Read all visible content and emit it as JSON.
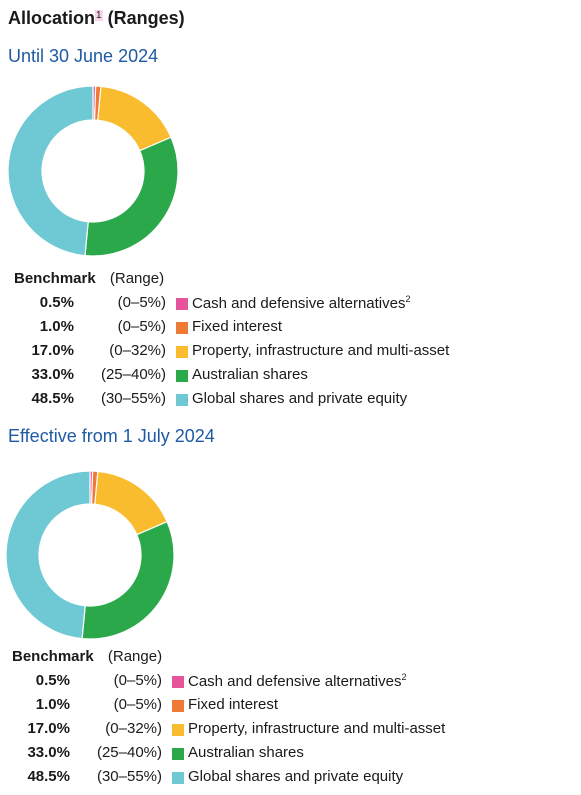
{
  "title": "Allocation",
  "title_footnote": "1",
  "title_suffix": "(Ranges)",
  "legend_headers": {
    "benchmark": "Benchmark",
    "range": "(Range)"
  },
  "chart_data": [
    {
      "type": "pie",
      "title": "Until 30 June 2024",
      "series": [
        {
          "name": "Cash and defensive alternatives",
          "footnote": "2",
          "value": 0.5,
          "range": "(0–5%)",
          "color": "#e4559a"
        },
        {
          "name": "Fixed interest",
          "value": 1.0,
          "range": "(0–5%)",
          "color": "#ee7a35"
        },
        {
          "name": "Property, infrastructure and multi-asset",
          "value": 17.0,
          "range": "(0–32%)",
          "color": "#f9bc2e"
        },
        {
          "name": "Australian shares",
          "value": 33.0,
          "range": "(25–40%)",
          "color": "#2aa84a"
        },
        {
          "name": "Global shares and private equity",
          "value": 48.5,
          "range": "(30–55%)",
          "color": "#6ec9d4"
        }
      ]
    },
    {
      "type": "pie",
      "title": "Effective from 1 July 2024",
      "series": [
        {
          "name": "Cash and defensive alternatives",
          "footnote": "2",
          "value": 0.5,
          "range": "(0–5%)",
          "color": "#e4559a"
        },
        {
          "name": "Fixed interest",
          "value": 1.0,
          "range": "(0–5%)",
          "color": "#ee7a35"
        },
        {
          "name": "Property, infrastructure and multi-asset",
          "value": 17.0,
          "range": "(0–32%)",
          "color": "#f9bc2e"
        },
        {
          "name": "Australian shares",
          "value": 33.0,
          "range": "(25–40%)",
          "color": "#2aa84a"
        },
        {
          "name": "Global shares and private equity",
          "value": 48.5,
          "range": "(30–55%)",
          "color": "#6ec9d4"
        }
      ]
    }
  ]
}
